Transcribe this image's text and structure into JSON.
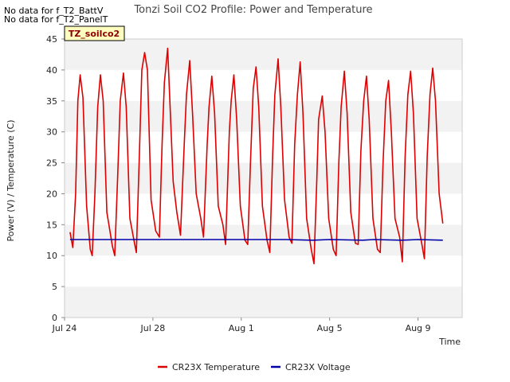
{
  "notes": [
    "No data for f_T2_BattV",
    "No data for f_T2_PanelT"
  ],
  "chart_data": {
    "type": "line",
    "title": "Tonzi Soil CO2 Profile: Power and Temperature",
    "xlabel": "Time",
    "ylabel": "Power (V) / Temperature (C)",
    "badge": "TZ_soilco2",
    "xlim": [
      "2016-07-24",
      "2016-08-11"
    ],
    "ylim": [
      0,
      45
    ],
    "yticks": [
      0,
      5,
      10,
      15,
      20,
      25,
      30,
      35,
      40,
      45
    ],
    "xticks": [
      {
        "date": "2016-07-24",
        "label": "Jul 24"
      },
      {
        "date": "2016-07-28",
        "label": "Jul 28"
      },
      {
        "date": "2016-08-01",
        "label": "Aug 1"
      },
      {
        "date": "2016-08-05",
        "label": "Aug 5"
      },
      {
        "date": "2016-08-09",
        "label": "Aug 9"
      }
    ],
    "grid": true,
    "legend_position": "bottom",
    "series": [
      {
        "name": "CR23X Temperature",
        "color": "#dd0000",
        "points": [
          [
            "2016-07-24 06:00",
            13.8
          ],
          [
            "2016-07-24 09:00",
            11.3
          ],
          [
            "2016-07-24 12:00",
            20.0
          ],
          [
            "2016-07-24 14:30",
            35.0
          ],
          [
            "2016-07-24 17:00",
            39.2
          ],
          [
            "2016-07-24 20:00",
            35.5
          ],
          [
            "2016-07-25 00:00",
            18.0
          ],
          [
            "2016-07-25 04:00",
            11.0
          ],
          [
            "2016-07-25 06:00",
            10.0
          ],
          [
            "2016-07-25 09:00",
            20.0
          ],
          [
            "2016-07-25 12:00",
            34.0
          ],
          [
            "2016-07-25 15:00",
            39.2
          ],
          [
            "2016-07-25 18:00",
            35.0
          ],
          [
            "2016-07-25 22:00",
            17.0
          ],
          [
            "2016-07-26 04:00",
            11.5
          ],
          [
            "2016-07-26 06:30",
            10.0
          ],
          [
            "2016-07-26 10:00",
            24.0
          ],
          [
            "2016-07-26 12:30",
            35.0
          ],
          [
            "2016-07-26 16:00",
            39.5
          ],
          [
            "2016-07-26 19:00",
            34.0
          ],
          [
            "2016-07-26 23:00",
            16.0
          ],
          [
            "2016-07-27 04:00",
            12.0
          ],
          [
            "2016-07-27 06:00",
            10.5
          ],
          [
            "2016-07-27 09:00",
            25.0
          ],
          [
            "2016-07-27 12:00",
            40.0
          ],
          [
            "2016-07-27 15:00",
            42.8
          ],
          [
            "2016-07-27 18:00",
            40.0
          ],
          [
            "2016-07-27 22:00",
            19.0
          ],
          [
            "2016-07-28 03:00",
            14.0
          ],
          [
            "2016-07-28 07:00",
            13.0
          ],
          [
            "2016-07-28 10:00",
            28.0
          ],
          [
            "2016-07-28 12:30",
            38.0
          ],
          [
            "2016-07-28 16:00",
            43.5
          ],
          [
            "2016-07-28 19:00",
            33.0
          ],
          [
            "2016-07-28 22:00",
            22.0
          ],
          [
            "2016-07-29 02:00",
            17.0
          ],
          [
            "2016-07-29 06:00",
            13.3
          ],
          [
            "2016-07-29 10:00",
            28.0
          ],
          [
            "2016-07-29 12:30",
            36.0
          ],
          [
            "2016-07-29 16:00",
            41.5
          ],
          [
            "2016-07-29 19:00",
            33.0
          ],
          [
            "2016-07-29 23:00",
            20.0
          ],
          [
            "2016-07-30 04:00",
            16.0
          ],
          [
            "2016-07-30 07:00",
            13.0
          ],
          [
            "2016-07-30 11:00",
            28.0
          ],
          [
            "2016-07-30 13:00",
            34.0
          ],
          [
            "2016-07-30 16:00",
            39.0
          ],
          [
            "2016-07-30 19:00",
            33.0
          ],
          [
            "2016-07-30 23:00",
            18.0
          ],
          [
            "2016-07-31 04:00",
            15.0
          ],
          [
            "2016-07-31 07:00",
            11.8
          ],
          [
            "2016-07-31 11:00",
            30.0
          ],
          [
            "2016-07-31 13:00",
            35.0
          ],
          [
            "2016-07-31 16:00",
            39.2
          ],
          [
            "2016-07-31 19:00",
            32.0
          ],
          [
            "2016-07-31 23:00",
            18.0
          ],
          [
            "2016-08-01 04:00",
            12.5
          ],
          [
            "2016-08-01 07:00",
            11.8
          ],
          [
            "2016-08-01 10:00",
            25.0
          ],
          [
            "2016-08-01 13:00",
            37.0
          ],
          [
            "2016-08-01 16:00",
            40.5
          ],
          [
            "2016-08-01 19:00",
            34.0
          ],
          [
            "2016-08-01 23:00",
            18.0
          ],
          [
            "2016-08-02 04:00",
            12.5
          ],
          [
            "2016-08-02 07:00",
            10.5
          ],
          [
            "2016-08-02 10:00",
            26.0
          ],
          [
            "2016-08-02 12:30",
            36.0
          ],
          [
            "2016-08-02 16:00",
            41.8
          ],
          [
            "2016-08-02 19:00",
            34.0
          ],
          [
            "2016-08-02 23:00",
            19.0
          ],
          [
            "2016-08-03 04:00",
            13.0
          ],
          [
            "2016-08-03 07:00",
            12.0
          ],
          [
            "2016-08-03 10:00",
            28.0
          ],
          [
            "2016-08-03 13:00",
            36.0
          ],
          [
            "2016-08-03 16:00",
            41.3
          ],
          [
            "2016-08-03 19:00",
            33.0
          ],
          [
            "2016-08-03 23:00",
            16.0
          ],
          [
            "2016-08-04 04:00",
            11.0
          ],
          [
            "2016-08-04 07:00",
            8.7
          ],
          [
            "2016-08-04 10:00",
            22.0
          ],
          [
            "2016-08-04 12:00",
            32.0
          ],
          [
            "2016-08-04 16:00",
            35.8
          ],
          [
            "2016-08-04 19:00",
            30.0
          ],
          [
            "2016-08-04 23:00",
            16.0
          ],
          [
            "2016-08-05 04:00",
            11.0
          ],
          [
            "2016-08-05 07:00",
            10.0
          ],
          [
            "2016-08-05 10:00",
            25.0
          ],
          [
            "2016-08-05 12:30",
            34.0
          ],
          [
            "2016-08-05 16:00",
            39.8
          ],
          [
            "2016-08-05 19:00",
            33.0
          ],
          [
            "2016-08-05 23:00",
            17.0
          ],
          [
            "2016-08-06 04:00",
            12.0
          ],
          [
            "2016-08-06 07:00",
            11.8
          ],
          [
            "2016-08-06 10:00",
            27.0
          ],
          [
            "2016-08-06 13:00",
            35.0
          ],
          [
            "2016-08-06 16:00",
            39.0
          ],
          [
            "2016-08-06 19:00",
            32.0
          ],
          [
            "2016-08-06 23:00",
            16.0
          ],
          [
            "2016-08-07 04:00",
            11.0
          ],
          [
            "2016-08-07 07:00",
            10.5
          ],
          [
            "2016-08-07 10:00",
            25.0
          ],
          [
            "2016-08-07 13:00",
            35.0
          ],
          [
            "2016-08-07 16:00",
            38.3
          ],
          [
            "2016-08-07 19:00",
            30.0
          ],
          [
            "2016-08-07 23:00",
            16.0
          ],
          [
            "2016-08-08 04:00",
            13.0
          ],
          [
            "2016-08-08 07:00",
            9.0
          ],
          [
            "2016-08-08 10:00",
            26.0
          ],
          [
            "2016-08-08 13:00",
            36.0
          ],
          [
            "2016-08-08 16:00",
            39.8
          ],
          [
            "2016-08-08 19:00",
            33.0
          ],
          [
            "2016-08-08 23:00",
            16.0
          ],
          [
            "2016-08-09 04:00",
            12.0
          ],
          [
            "2016-08-09 07:00",
            9.5
          ],
          [
            "2016-08-09 10:00",
            26.0
          ],
          [
            "2016-08-09 13:00",
            36.0
          ],
          [
            "2016-08-09 16:00",
            40.3
          ],
          [
            "2016-08-09 19:00",
            35.0
          ],
          [
            "2016-08-09 23:00",
            20.0
          ],
          [
            "2016-08-10 03:00",
            15.2
          ]
        ]
      },
      {
        "name": "CR23X Voltage",
        "color": "#0000aa",
        "points": [
          [
            "2016-07-24 06:00",
            12.6
          ],
          [
            "2016-07-26 00:00",
            12.6
          ],
          [
            "2016-07-28 00:00",
            12.6
          ],
          [
            "2016-07-30 00:00",
            12.6
          ],
          [
            "2016-08-01 00:00",
            12.6
          ],
          [
            "2016-08-03 00:00",
            12.6
          ],
          [
            "2016-08-04 06:00",
            12.5
          ],
          [
            "2016-08-05 00:00",
            12.6
          ],
          [
            "2016-08-06 12:00",
            12.5
          ],
          [
            "2016-08-07 00:00",
            12.6
          ],
          [
            "2016-08-08 06:00",
            12.5
          ],
          [
            "2016-08-09 00:00",
            12.6
          ],
          [
            "2016-08-10 03:00",
            12.5
          ]
        ]
      }
    ]
  }
}
